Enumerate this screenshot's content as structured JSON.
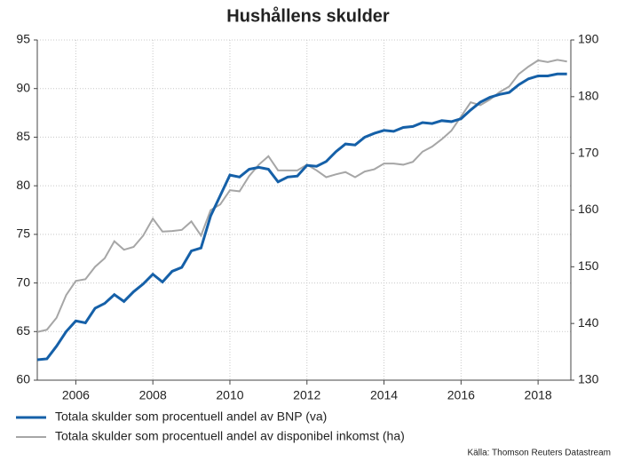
{
  "chart_data": {
    "type": "line",
    "title": "Hushållens skulder",
    "source": "Källa: Thomson Reuters Datastream",
    "x": [
      2005,
      2005.25,
      2005.5,
      2005.75,
      2006,
      2006.25,
      2006.5,
      2006.75,
      2007,
      2007.25,
      2007.5,
      2007.75,
      2008,
      2008.25,
      2008.5,
      2008.75,
      2009,
      2009.25,
      2009.5,
      2009.75,
      2010,
      2010.25,
      2010.5,
      2010.75,
      2011,
      2011.25,
      2011.5,
      2011.75,
      2012,
      2012.25,
      2012.5,
      2012.75,
      2013,
      2013.25,
      2013.5,
      2013.75,
      2014,
      2014.25,
      2014.5,
      2014.75,
      2015,
      2015.25,
      2015.5,
      2015.75,
      2016,
      2016.25,
      2016.5,
      2016.75,
      2017,
      2017.25,
      2017.5,
      2017.75,
      2018,
      2018.25,
      2018.5,
      2018.75
    ],
    "series": [
      {
        "name": "Totala skulder som procentuell andel av BNP (va)",
        "color": "#1560a8",
        "values": [
          62.1,
          62.2,
          63.5,
          65.0,
          66.1,
          65.9,
          67.4,
          67.9,
          68.8,
          68.1,
          69.1,
          69.9,
          70.9,
          70.1,
          71.2,
          71.6,
          73.3,
          73.6,
          76.9,
          79.0,
          81.1,
          80.9,
          81.7,
          81.9,
          81.7,
          80.4,
          80.9,
          81.0,
          82.1,
          82.0,
          82.5,
          83.5,
          84.3,
          84.2,
          85.0,
          85.4,
          85.7,
          85.6,
          86.0,
          86.1,
          86.5,
          86.4,
          86.7,
          86.6,
          86.9,
          87.8,
          88.6,
          89.1,
          89.4,
          89.6,
          90.4,
          91.0,
          91.3,
          91.3,
          91.5,
          91.5
        ]
      },
      {
        "name": "Totala skulder som procentuell andel av disponibel inkomst (ha)",
        "color": "#a6a6a6",
        "axis": "y2",
        "values": [
          138.5,
          138.9,
          141,
          145,
          147.5,
          147.8,
          150,
          151.5,
          154.5,
          153,
          153.5,
          155.5,
          158.5,
          156.2,
          156.3,
          156.5,
          158,
          155.5,
          160,
          161,
          163.5,
          163.3,
          166,
          168,
          169.5,
          167,
          167,
          167,
          168,
          167,
          165.8,
          166.3,
          166.7,
          165.8,
          166.8,
          167.2,
          168.2,
          168.2,
          168,
          168.5,
          170.3,
          171.2,
          172.5,
          174,
          176.5,
          179,
          178.5,
          179.5,
          180.8,
          181.8,
          184,
          185.3,
          186.4,
          186.1,
          186.5,
          186.2
        ]
      }
    ],
    "xlim": [
      2005,
      2018.85
    ],
    "xticks": [
      2006,
      2008,
      2010,
      2012,
      2014,
      2016,
      2018
    ],
    "ylim": [
      60,
      95
    ],
    "yticks": [
      60,
      65,
      70,
      75,
      80,
      85,
      90,
      95
    ],
    "y2lim": [
      130,
      190
    ],
    "y2ticks": [
      130,
      140,
      150,
      160,
      170,
      180,
      190
    ],
    "grid": true,
    "legend": "bottom"
  }
}
